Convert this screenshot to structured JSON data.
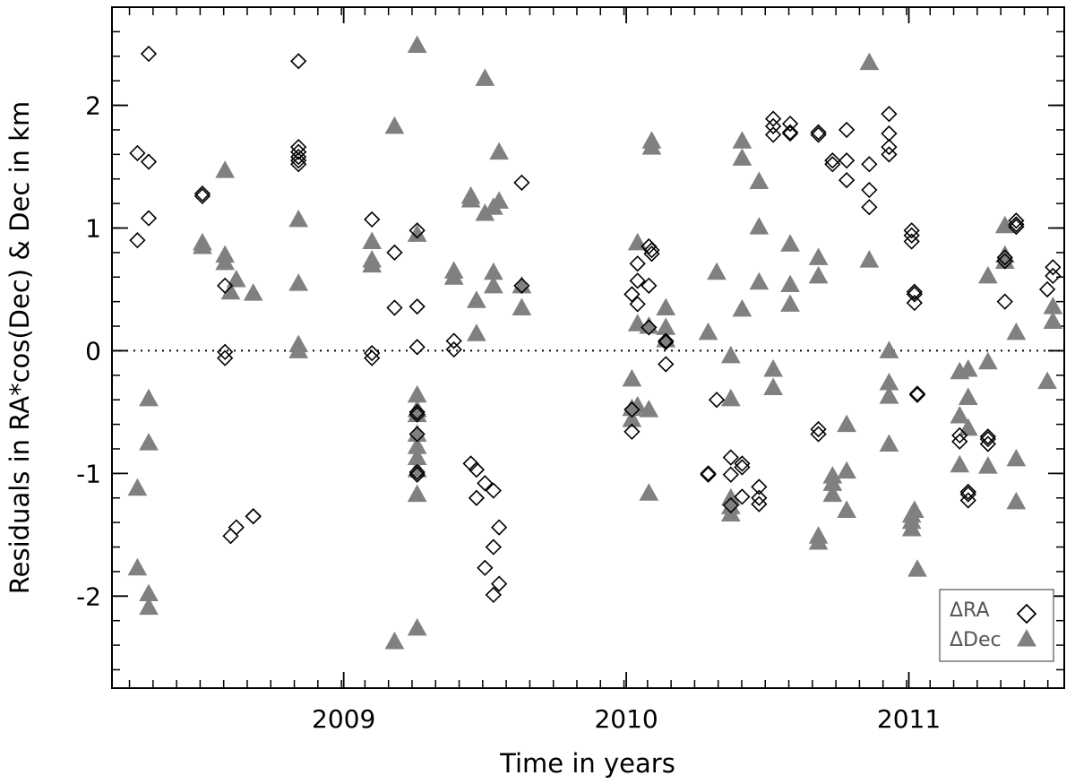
{
  "chart_data": {
    "type": "scatter",
    "xlabel": "Time in years",
    "ylabel": "Residuals in RA*cos(Dec) & Dec in km",
    "xlim": [
      2008.18,
      2011.55
    ],
    "ylim": [
      -2.75,
      2.8
    ],
    "x_tick_labels": [
      "2009",
      "2010",
      "2011"
    ],
    "x_major_ticks": [
      2009,
      2010,
      2011
    ],
    "x_minor_tick_step": 0.083333,
    "y_tick_labels": [
      "-2",
      "-1",
      "0",
      "1",
      "2"
    ],
    "y_major_ticks": [
      -2,
      -1,
      0,
      1,
      2
    ],
    "y_minor_tick_step": 0.2,
    "zero_line": true,
    "grid": false,
    "legend_position": "bottom-right",
    "colors": {
      "ra": "#000000",
      "dec": "#808080",
      "axis": "#000000"
    },
    "series": [
      {
        "name": "ΔRA",
        "marker": "open-diamond",
        "points": [
          [
            2008.27,
            1.61
          ],
          [
            2008.27,
            0.9
          ],
          [
            2008.31,
            2.42
          ],
          [
            2008.31,
            1.54
          ],
          [
            2008.31,
            1.08
          ],
          [
            2008.5,
            1.28
          ],
          [
            2008.5,
            1.26
          ],
          [
            2008.58,
            0.53
          ],
          [
            2008.58,
            -0.01
          ],
          [
            2008.58,
            -0.06
          ],
          [
            2008.6,
            -1.51
          ],
          [
            2008.62,
            -1.44
          ],
          [
            2008.68,
            -1.35
          ],
          [
            2008.68,
            -1.35
          ],
          [
            2008.84,
            2.36
          ],
          [
            2008.84,
            1.66
          ],
          [
            2008.84,
            1.62
          ],
          [
            2008.84,
            1.58
          ],
          [
            2008.84,
            1.55
          ],
          [
            2008.84,
            1.52
          ],
          [
            2009.1,
            1.07
          ],
          [
            2009.1,
            -0.02
          ],
          [
            2009.1,
            -0.06
          ],
          [
            2009.18,
            0.8
          ],
          [
            2009.18,
            0.35
          ],
          [
            2009.26,
            0.98
          ],
          [
            2009.26,
            0.36
          ],
          [
            2009.26,
            0.03
          ],
          [
            2009.26,
            -0.5
          ],
          [
            2009.26,
            -0.52
          ],
          [
            2009.26,
            -0.68
          ],
          [
            2009.26,
            -0.99
          ],
          [
            2009.26,
            -1.01
          ],
          [
            2009.39,
            0.08
          ],
          [
            2009.39,
            0.01
          ],
          [
            2009.45,
            -0.92
          ],
          [
            2009.47,
            -0.97
          ],
          [
            2009.47,
            -1.2
          ],
          [
            2009.5,
            -1.08
          ],
          [
            2009.5,
            -1.77
          ],
          [
            2009.53,
            -1.14
          ],
          [
            2009.53,
            -1.6
          ],
          [
            2009.53,
            -1.99
          ],
          [
            2009.55,
            -1.44
          ],
          [
            2009.55,
            -1.9
          ],
          [
            2009.63,
            1.37
          ],
          [
            2009.63,
            0.53
          ],
          [
            2010.02,
            0.46
          ],
          [
            2010.02,
            -0.48
          ],
          [
            2010.02,
            -0.66
          ],
          [
            2010.04,
            0.71
          ],
          [
            2010.04,
            0.57
          ],
          [
            2010.04,
            0.38
          ],
          [
            2010.08,
            0.85
          ],
          [
            2010.09,
            0.82
          ],
          [
            2010.09,
            0.79
          ],
          [
            2010.08,
            0.53
          ],
          [
            2010.08,
            0.19
          ],
          [
            2010.14,
            0.08
          ],
          [
            2010.14,
            0.07
          ],
          [
            2010.14,
            -0.11
          ],
          [
            2010.29,
            -1.0
          ],
          [
            2010.29,
            -1.01
          ],
          [
            2010.32,
            -0.4
          ],
          [
            2010.37,
            -0.87
          ],
          [
            2010.37,
            -1.01
          ],
          [
            2010.37,
            -1.26
          ],
          [
            2010.41,
            -0.92
          ],
          [
            2010.41,
            -0.95
          ],
          [
            2010.41,
            -1.19
          ],
          [
            2010.47,
            -1.11
          ],
          [
            2010.47,
            -1.2
          ],
          [
            2010.47,
            -1.25
          ],
          [
            2010.52,
            1.89
          ],
          [
            2010.52,
            1.83
          ],
          [
            2010.52,
            1.76
          ],
          [
            2010.58,
            1.85
          ],
          [
            2010.58,
            1.78
          ],
          [
            2010.58,
            1.77
          ],
          [
            2010.68,
            1.78
          ],
          [
            2010.68,
            1.76
          ],
          [
            2010.68,
            -0.64
          ],
          [
            2010.68,
            -0.68
          ],
          [
            2010.73,
            1.55
          ],
          [
            2010.73,
            1.52
          ],
          [
            2010.78,
            1.8
          ],
          [
            2010.78,
            1.55
          ],
          [
            2010.78,
            1.39
          ],
          [
            2010.86,
            1.52
          ],
          [
            2010.86,
            1.31
          ],
          [
            2010.86,
            1.17
          ],
          [
            2010.93,
            1.93
          ],
          [
            2010.93,
            1.77
          ],
          [
            2010.93,
            1.66
          ],
          [
            2010.93,
            1.6
          ],
          [
            2011.01,
            0.98
          ],
          [
            2011.01,
            0.94
          ],
          [
            2011.01,
            0.89
          ],
          [
            2011.02,
            0.48
          ],
          [
            2011.02,
            0.46
          ],
          [
            2011.02,
            0.39
          ],
          [
            2011.03,
            -0.35
          ],
          [
            2011.03,
            -0.36
          ],
          [
            2011.18,
            -0.69
          ],
          [
            2011.18,
            -0.74
          ],
          [
            2011.21,
            -1.15
          ],
          [
            2011.21,
            -1.17
          ],
          [
            2011.21,
            -1.22
          ],
          [
            2011.28,
            -0.7
          ],
          [
            2011.28,
            -0.72
          ],
          [
            2011.28,
            -0.76
          ],
          [
            2011.34,
            0.76
          ],
          [
            2011.34,
            0.73
          ],
          [
            2011.34,
            0.4
          ],
          [
            2011.38,
            1.06
          ],
          [
            2011.38,
            1.03
          ],
          [
            2011.38,
            1.01
          ],
          [
            2011.49,
            0.5
          ],
          [
            2011.51,
            0.68
          ],
          [
            2011.51,
            0.61
          ]
        ]
      },
      {
        "name": "ΔDec",
        "marker": "filled-triangle",
        "points": [
          [
            2008.27,
            -1.12
          ],
          [
            2008.27,
            -1.77
          ],
          [
            2008.31,
            -0.39
          ],
          [
            2008.31,
            -0.75
          ],
          [
            2008.31,
            -1.98
          ],
          [
            2008.31,
            -2.09
          ],
          [
            2008.5,
            0.88
          ],
          [
            2008.5,
            0.85
          ],
          [
            2008.58,
            1.47
          ],
          [
            2008.58,
            0.78
          ],
          [
            2008.58,
            0.72
          ],
          [
            2008.6,
            0.48
          ],
          [
            2008.62,
            0.58
          ],
          [
            2008.68,
            0.47
          ],
          [
            2008.84,
            1.07
          ],
          [
            2008.84,
            0.55
          ],
          [
            2008.84,
            0.05
          ],
          [
            2008.84,
            0.0
          ],
          [
            2009.1,
            0.89
          ],
          [
            2009.1,
            0.74
          ],
          [
            2009.1,
            0.7
          ],
          [
            2009.18,
            1.83
          ],
          [
            2009.18,
            -2.37
          ],
          [
            2009.26,
            2.49
          ],
          [
            2009.26,
            0.95
          ],
          [
            2009.26,
            -0.36
          ],
          [
            2009.26,
            -0.48
          ],
          [
            2009.26,
            -0.52
          ],
          [
            2009.26,
            -0.68
          ],
          [
            2009.26,
            -0.78
          ],
          [
            2009.26,
            -0.87
          ],
          [
            2009.26,
            -0.97
          ],
          [
            2009.26,
            -1.17
          ],
          [
            2009.26,
            -2.26
          ],
          [
            2009.39,
            0.65
          ],
          [
            2009.39,
            0.6
          ],
          [
            2009.45,
            1.26
          ],
          [
            2009.45,
            1.23
          ],
          [
            2009.47,
            0.41
          ],
          [
            2009.47,
            0.14
          ],
          [
            2009.5,
            2.22
          ],
          [
            2009.5,
            1.12
          ],
          [
            2009.53,
            1.17
          ],
          [
            2009.53,
            0.64
          ],
          [
            2009.53,
            0.53
          ],
          [
            2009.55,
            1.62
          ],
          [
            2009.55,
            1.22
          ],
          [
            2009.63,
            0.53
          ],
          [
            2009.63,
            0.35
          ],
          [
            2010.02,
            -0.23
          ],
          [
            2010.02,
            -0.47
          ],
          [
            2010.02,
            -0.56
          ],
          [
            2010.04,
            0.88
          ],
          [
            2010.04,
            0.22
          ],
          [
            2010.04,
            -0.45
          ],
          [
            2010.09,
            1.71
          ],
          [
            2010.09,
            1.66
          ],
          [
            2010.08,
            0.2
          ],
          [
            2010.08,
            -0.48
          ],
          [
            2010.08,
            -1.16
          ],
          [
            2010.14,
            0.35
          ],
          [
            2010.14,
            0.19
          ],
          [
            2010.14,
            0.09
          ],
          [
            2010.29,
            0.15
          ],
          [
            2010.32,
            0.64
          ],
          [
            2010.37,
            -0.04
          ],
          [
            2010.37,
            -0.39
          ],
          [
            2010.37,
            -1.2
          ],
          [
            2010.37,
            -1.27
          ],
          [
            2010.37,
            -1.33
          ],
          [
            2010.41,
            1.71
          ],
          [
            2010.41,
            1.57
          ],
          [
            2010.41,
            0.34
          ],
          [
            2010.47,
            1.01
          ],
          [
            2010.47,
            1.38
          ],
          [
            2010.47,
            0.56
          ],
          [
            2010.52,
            -0.15
          ],
          [
            2010.52,
            -0.3
          ],
          [
            2010.58,
            0.87
          ],
          [
            2010.58,
            0.54
          ],
          [
            2010.58,
            0.38
          ],
          [
            2010.68,
            0.76
          ],
          [
            2010.68,
            0.61
          ],
          [
            2010.68,
            -1.51
          ],
          [
            2010.68,
            -1.56
          ],
          [
            2010.73,
            -1.02
          ],
          [
            2010.73,
            -1.08
          ],
          [
            2010.73,
            -1.17
          ],
          [
            2010.78,
            -0.6
          ],
          [
            2010.78,
            -0.98
          ],
          [
            2010.78,
            -1.3
          ],
          [
            2010.86,
            2.35
          ],
          [
            2010.86,
            0.74
          ],
          [
            2010.93,
            0.0
          ],
          [
            2010.93,
            -0.26
          ],
          [
            2010.93,
            -0.37
          ],
          [
            2010.93,
            -0.76
          ],
          [
            2011.01,
            -1.34
          ],
          [
            2011.01,
            -1.39
          ],
          [
            2011.01,
            -1.45
          ],
          [
            2011.02,
            -1.3
          ],
          [
            2011.03,
            -1.78
          ],
          [
            2011.18,
            -0.17
          ],
          [
            2011.18,
            -0.53
          ],
          [
            2011.18,
            -0.93
          ],
          [
            2011.21,
            -0.15
          ],
          [
            2011.21,
            -0.38
          ],
          [
            2011.21,
            -0.63
          ],
          [
            2011.28,
            -0.09
          ],
          [
            2011.28,
            -0.94
          ],
          [
            2011.28,
            0.61
          ],
          [
            2011.34,
            1.02
          ],
          [
            2011.34,
            0.78
          ],
          [
            2011.34,
            0.73
          ],
          [
            2011.38,
            0.15
          ],
          [
            2011.38,
            -0.88
          ],
          [
            2011.38,
            -1.23
          ],
          [
            2011.49,
            -0.25
          ],
          [
            2011.51,
            0.36
          ],
          [
            2011.51,
            0.24
          ]
        ]
      }
    ]
  }
}
